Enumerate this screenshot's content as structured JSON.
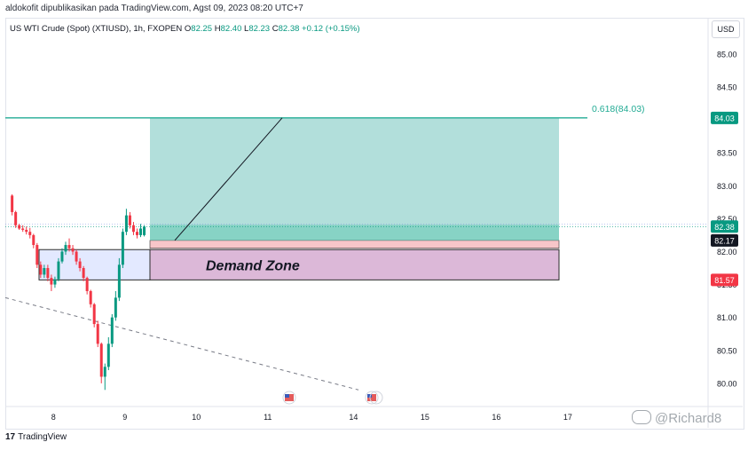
{
  "header": {
    "published_by": "aldokofit dipublikasikan pada TradingView.com, Agst 09, 2023 08:20 UTC+7"
  },
  "legend": {
    "symbol": "US WTI Crude (Spot) (XTIUSD), 1h, FXOPEN",
    "o_label": "O",
    "o_value": "82.25",
    "h_label": "H",
    "h_value": "82.40",
    "l_label": "L",
    "l_value": "82.23",
    "c_label": "C",
    "c_value": "82.38",
    "change": "+0.12 (+0.15%)"
  },
  "currency_button": "USD",
  "footer": {
    "brand": "TradingView",
    "logo_mark": "17"
  },
  "watermark": {
    "text": "@Richard8"
  },
  "colors": {
    "up": "#089981",
    "down": "#f23645",
    "fib": "#22ab94",
    "target_zone": "#b2dfdb",
    "stop_zone": "#f7c6c9",
    "demand_zone": "#dcb8d8",
    "blue_zone": "#e3e9ff"
  },
  "chart_data": {
    "type": "candlestick",
    "y_axis": {
      "min": 79.85,
      "max": 85.2,
      "ticks": [
        "80.00",
        "80.50",
        "81.00",
        "81.50",
        "82.00",
        "82.50",
        "83.00",
        "83.50",
        "84.00",
        "84.50",
        "85.00"
      ]
    },
    "x_axis": {
      "min": 7.35,
      "max": 17.6,
      "ticks": [
        {
          "x": 8,
          "label": "8"
        },
        {
          "x": 9,
          "label": "9"
        },
        {
          "x": 10,
          "label": "10"
        },
        {
          "x": 11,
          "label": "11"
        },
        {
          "x": 14,
          "label": "14"
        },
        {
          "x": 15,
          "label": "15"
        },
        {
          "x": 16,
          "label": "16"
        },
        {
          "x": 17,
          "label": "17"
        }
      ]
    },
    "x_tick_positions": {
      "8": 8.0,
      "9": 9.0,
      "10": 10.0,
      "11": 11.0,
      "14": 12.2,
      "15": 13.2,
      "16": 14.2,
      "17": 15.2
    },
    "price_labels": [
      {
        "value": 84.03,
        "label": "84.03",
        "color": "#089981"
      },
      {
        "value": 82.38,
        "label": "82.38",
        "color": "#089981"
      },
      {
        "value": 82.17,
        "label": "82.17",
        "color": "#131722"
      },
      {
        "value": 81.57,
        "label": "81.57",
        "color": "#f23645"
      }
    ],
    "fib_line": {
      "value": 84.03,
      "label": "0.618(84.03)"
    },
    "zones": [
      {
        "name": "target",
        "x_from": 9.04,
        "x_to": 14.2,
        "y_from": 82.17,
        "y_to": 84.03
      },
      {
        "name": "stop",
        "x_from": 9.04,
        "x_to": 14.2,
        "y_from": 82.05,
        "y_to": 82.17
      },
      {
        "name": "demand",
        "x_from": 9.04,
        "x_to": 14.2,
        "y_from": 81.57,
        "y_to": 82.03,
        "label": "Demand Zone"
      },
      {
        "name": "blue",
        "x_from": 7.73,
        "x_to": 9.04,
        "y_from": 81.57,
        "y_to": 82.03
      }
    ],
    "projection": [
      {
        "x": 9.35,
        "y": 82.17
      },
      {
        "x": 10.7,
        "y": 84.03
      }
    ],
    "trendline": [
      {
        "x": 7.35,
        "y": 81.3
      },
      {
        "x": 11.6,
        "y": 79.9
      }
    ],
    "events": [
      {
        "x": 10.77,
        "y": 79.96
      },
      {
        "x": 11.86,
        "y": 79.96
      }
    ],
    "candles": [
      {
        "x": 7.42,
        "o": 82.85,
        "h": 82.87,
        "l": 82.55,
        "c": 82.6
      },
      {
        "x": 7.47,
        "o": 82.6,
        "h": 82.62,
        "l": 82.36,
        "c": 82.4
      },
      {
        "x": 7.52,
        "o": 82.4,
        "h": 82.42,
        "l": 82.33,
        "c": 82.35
      },
      {
        "x": 7.57,
        "o": 82.35,
        "h": 82.4,
        "l": 82.3,
        "c": 82.33
      },
      {
        "x": 7.62,
        "o": 82.33,
        "h": 82.38,
        "l": 82.26,
        "c": 82.3
      },
      {
        "x": 7.67,
        "o": 82.3,
        "h": 82.36,
        "l": 82.2,
        "c": 82.25
      },
      {
        "x": 7.72,
        "o": 82.25,
        "h": 82.27,
        "l": 82.05,
        "c": 82.1
      },
      {
        "x": 7.77,
        "o": 82.1,
        "h": 82.13,
        "l": 81.75,
        "c": 81.8
      },
      {
        "x": 7.82,
        "o": 81.8,
        "h": 81.85,
        "l": 81.6,
        "c": 81.65
      },
      {
        "x": 7.87,
        "o": 81.65,
        "h": 81.8,
        "l": 81.6,
        "c": 81.75
      },
      {
        "x": 7.92,
        "o": 81.75,
        "h": 81.8,
        "l": 81.55,
        "c": 81.6
      },
      {
        "x": 7.97,
        "o": 81.6,
        "h": 81.65,
        "l": 81.4,
        "c": 81.5
      },
      {
        "x": 8.02,
        "o": 81.5,
        "h": 81.62,
        "l": 81.45,
        "c": 81.58
      },
      {
        "x": 8.07,
        "o": 81.58,
        "h": 81.9,
        "l": 81.55,
        "c": 81.85
      },
      {
        "x": 8.12,
        "o": 81.85,
        "h": 82.05,
        "l": 81.82,
        "c": 82.0
      },
      {
        "x": 8.17,
        "o": 82.0,
        "h": 82.15,
        "l": 81.95,
        "c": 82.1
      },
      {
        "x": 8.22,
        "o": 82.1,
        "h": 82.2,
        "l": 82.0,
        "c": 82.05
      },
      {
        "x": 8.27,
        "o": 82.05,
        "h": 82.1,
        "l": 81.95,
        "c": 82.0
      },
      {
        "x": 8.32,
        "o": 82.0,
        "h": 82.03,
        "l": 81.8,
        "c": 81.85
      },
      {
        "x": 8.37,
        "o": 81.85,
        "h": 81.9,
        "l": 81.7,
        "c": 81.75
      },
      {
        "x": 8.42,
        "o": 81.75,
        "h": 81.78,
        "l": 81.55,
        "c": 81.6
      },
      {
        "x": 8.47,
        "o": 81.6,
        "h": 81.62,
        "l": 81.35,
        "c": 81.4
      },
      {
        "x": 8.52,
        "o": 81.4,
        "h": 81.42,
        "l": 81.15,
        "c": 81.2
      },
      {
        "x": 8.57,
        "o": 81.2,
        "h": 81.22,
        "l": 80.85,
        "c": 80.9
      },
      {
        "x": 8.62,
        "o": 80.9,
        "h": 80.95,
        "l": 80.55,
        "c": 80.6
      },
      {
        "x": 8.67,
        "o": 80.6,
        "h": 80.62,
        "l": 80.0,
        "c": 80.1
      },
      {
        "x": 8.72,
        "o": 80.1,
        "h": 80.3,
        "l": 79.9,
        "c": 80.25
      },
      {
        "x": 8.77,
        "o": 80.25,
        "h": 80.7,
        "l": 80.2,
        "c": 80.6
      },
      {
        "x": 8.82,
        "o": 80.6,
        "h": 81.05,
        "l": 80.55,
        "c": 81.0
      },
      {
        "x": 8.87,
        "o": 81.0,
        "h": 81.4,
        "l": 80.95,
        "c": 81.3
      },
      {
        "x": 8.92,
        "o": 81.3,
        "h": 81.9,
        "l": 81.25,
        "c": 81.8
      },
      {
        "x": 8.97,
        "o": 81.8,
        "h": 82.35,
        "l": 81.75,
        "c": 82.3
      },
      {
        "x": 9.02,
        "o": 82.3,
        "h": 82.65,
        "l": 82.25,
        "c": 82.55
      },
      {
        "x": 9.07,
        "o": 82.55,
        "h": 82.6,
        "l": 82.35,
        "c": 82.4
      },
      {
        "x": 9.12,
        "o": 82.4,
        "h": 82.45,
        "l": 82.25,
        "c": 82.3
      },
      {
        "x": 9.17,
        "o": 82.3,
        "h": 82.35,
        "l": 82.2,
        "c": 82.25
      },
      {
        "x": 9.22,
        "o": 82.25,
        "h": 82.42,
        "l": 82.22,
        "c": 82.35
      },
      {
        "x": 9.27,
        "o": 82.25,
        "h": 82.4,
        "l": 82.23,
        "c": 82.38
      }
    ]
  }
}
